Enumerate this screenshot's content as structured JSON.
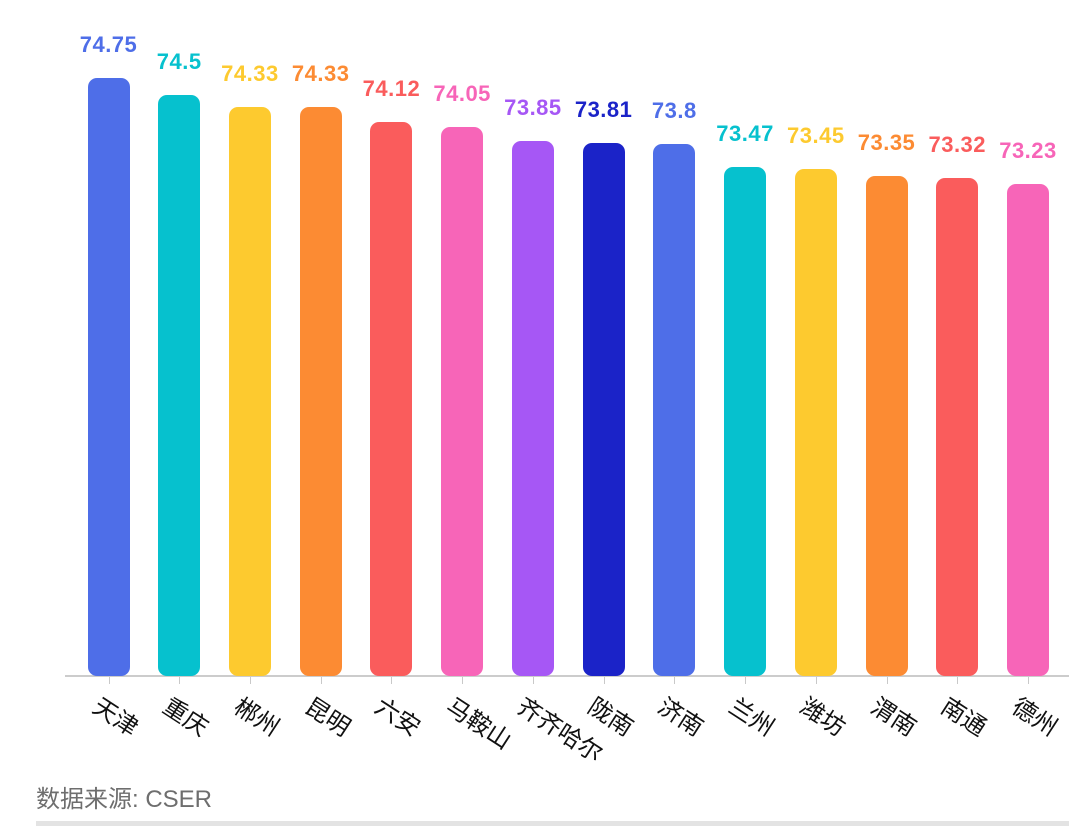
{
  "chart_data": {
    "type": "bar",
    "categories": [
      "天津",
      "重庆",
      "郴州",
      "昆明",
      "六安",
      "马鞍山",
      "齐齐哈尔",
      "陇南",
      "济南",
      "兰州",
      "潍坊",
      "渭南",
      "南通",
      "德州"
    ],
    "values": [
      74.75,
      74.5,
      74.33,
      74.33,
      74.12,
      74.05,
      73.85,
      73.81,
      73.8,
      73.47,
      73.45,
      73.35,
      73.32,
      73.23
    ],
    "palette": [
      "#4E6EE8",
      "#06C1CE",
      "#FDCA2F",
      "#FC8B33",
      "#FA5C5C",
      "#F765B8",
      "#A657F5",
      "#1B23C8"
    ],
    "title": "",
    "xlabel": "",
    "ylabel": "",
    "ylim": [
      66.2,
      75
    ],
    "grid": false,
    "legend": false,
    "value_label_position": "above-bar",
    "value_label_color": "same-as-bar",
    "x_label_rotation_deg": 33
  },
  "footer": {
    "source": "数据来源: CSER"
  }
}
